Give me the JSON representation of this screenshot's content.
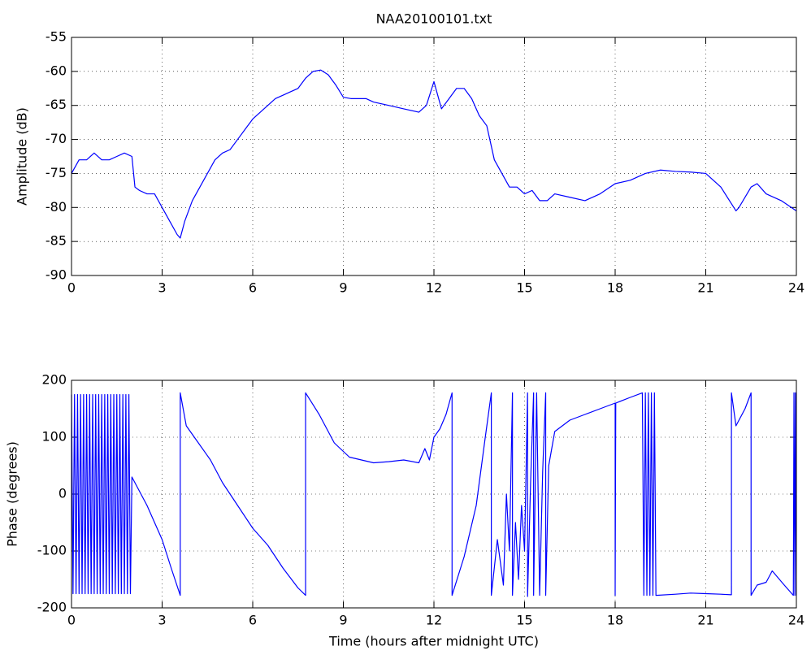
{
  "chart_data": [
    {
      "type": "line",
      "title": "NAA20100101.txt",
      "ylabel": "Amplitude (dB)",
      "xlim": [
        0,
        24
      ],
      "xticks": [
        0,
        3,
        6,
        9,
        12,
        15,
        18,
        21,
        24
      ],
      "ylim": [
        -90,
        -55
      ],
      "yticks": [
        -90,
        -85,
        -80,
        -75,
        -70,
        -65,
        -60,
        -55
      ],
      "grid": true,
      "series": [
        {
          "color": "#0000ff",
          "x": [
            0,
            0.25,
            0.5,
            0.75,
            1,
            1.25,
            1.5,
            1.75,
            2,
            2.1,
            2.25,
            2.5,
            2.75,
            3,
            3.25,
            3.5,
            3.6,
            3.75,
            4,
            4.25,
            4.5,
            4.75,
            5,
            5.25,
            5.5,
            5.75,
            6,
            6.25,
            6.5,
            6.75,
            7,
            7.25,
            7.5,
            7.75,
            8,
            8.25,
            8.5,
            8.75,
            9,
            9.25,
            9.5,
            9.75,
            10,
            10.5,
            11,
            11.5,
            11.75,
            12,
            12.25,
            12.5,
            12.75,
            13,
            13.25,
            13.5,
            13.75,
            14,
            14.25,
            14.5,
            14.75,
            15,
            15.25,
            15.5,
            15.75,
            16,
            16.5,
            17,
            17.5,
            18,
            18.5,
            19,
            19.5,
            20,
            20.5,
            21,
            21.5,
            22,
            22.1,
            22.5,
            22.7,
            23,
            23.5,
            24
          ],
          "values": [
            -75,
            -73,
            -73,
            -72,
            -73,
            -73,
            -72.5,
            -72,
            -72.5,
            -77,
            -77.5,
            -78,
            -78,
            -80,
            -82,
            -84,
            -84.5,
            -82,
            -79,
            -77,
            -75,
            -73,
            -72,
            -71.5,
            -70,
            -68.5,
            -67,
            -66,
            -65,
            -64,
            -63.5,
            -63,
            -62.5,
            -61,
            -60,
            -59.8,
            -60.5,
            -62,
            -63.8,
            -64,
            -64,
            -64,
            -64.5,
            -65,
            -65.5,
            -66,
            -65,
            -61.5,
            -65.5,
            -64,
            -62.5,
            -62.5,
            -64,
            -66.5,
            -68,
            -73,
            -75,
            -77,
            -77,
            -78,
            -77.5,
            -79,
            -79,
            -78,
            -78.5,
            -79,
            -78,
            -76.5,
            -76,
            -75,
            -74.5,
            -74.7,
            -74.8,
            -75,
            -77,
            -80.5,
            -80,
            -77,
            -76.5,
            -78,
            -79,
            -80.5
          ]
        }
      ]
    },
    {
      "type": "line",
      "xlabel": "Time (hours after midnight UTC)",
      "ylabel": "Phase (degrees)",
      "xlim": [
        0,
        24
      ],
      "xticks": [
        0,
        3,
        6,
        9,
        12,
        15,
        18,
        21,
        24
      ],
      "ylim": [
        -200,
        200
      ],
      "yticks": [
        -200,
        -100,
        0,
        100,
        200
      ],
      "grid": true,
      "series": [
        {
          "color": "#0000ff",
          "x": [
            0,
            0.05,
            0.1,
            0.15,
            0.2,
            0.25,
            0.3,
            0.35,
            0.4,
            0.45,
            0.5,
            0.55,
            0.6,
            0.65,
            0.7,
            0.75,
            0.8,
            0.85,
            0.9,
            0.95,
            1,
            1.05,
            1.1,
            1.15,
            1.2,
            1.25,
            1.3,
            1.35,
            1.4,
            1.45,
            1.5,
            1.55,
            1.6,
            1.65,
            1.7,
            1.75,
            1.8,
            1.85,
            1.9,
            1.95,
            2,
            2.5,
            3,
            3.3,
            3.6,
            3.6,
            3.8,
            4.2,
            4.6,
            5,
            5.5,
            6,
            6.5,
            7,
            7.5,
            7.75,
            7.75,
            8.2,
            8.7,
            9.2,
            9.6,
            10,
            10.5,
            11,
            11.5,
            11.7,
            11.85,
            12,
            12.2,
            12.4,
            12.6,
            12.6,
            13,
            13.4,
            13.7,
            13.9,
            13.9,
            14.1,
            14.3,
            14.4,
            14.5,
            14.6,
            14.6,
            14.7,
            14.8,
            14.9,
            15,
            15.1,
            15.1,
            15.2,
            15.3,
            15.3,
            15.4,
            15.5,
            15.6,
            15.7,
            15.7,
            15.8,
            16,
            16.5,
            17,
            17.5,
            18,
            18,
            18.02,
            18.5,
            18.9,
            18.95,
            19,
            19.05,
            19.1,
            19.15,
            19.2,
            19.25,
            19.3,
            19.35,
            20,
            20.5,
            21,
            21.5,
            21.85,
            21.85,
            22,
            22.3,
            22.5,
            22.5,
            22.7,
            23,
            23.2,
            23.6,
            23.9,
            23.92,
            23.95,
            23.97,
            24
          ],
          "values": [
            175,
            -175,
            175,
            -175,
            175,
            -175,
            175,
            -175,
            175,
            -175,
            175,
            -175,
            175,
            -175,
            175,
            -175,
            175,
            -175,
            175,
            -175,
            175,
            -175,
            175,
            -175,
            175,
            -175,
            175,
            -175,
            175,
            -175,
            175,
            -175,
            175,
            -175,
            175,
            -175,
            175,
            -175,
            175,
            -175,
            30,
            -20,
            -80,
            -130,
            -178,
            178,
            120,
            90,
            60,
            20,
            -20,
            -60,
            -90,
            -130,
            -165,
            -178,
            178,
            140,
            90,
            65,
            60,
            55,
            57,
            60,
            55,
            80,
            60,
            100,
            115,
            140,
            178,
            -178,
            -110,
            -20,
            100,
            178,
            -178,
            -80,
            -160,
            0,
            -100,
            178,
            -178,
            -50,
            -150,
            -20,
            -100,
            178,
            -180,
            20,
            178,
            -178,
            178,
            -178,
            40,
            178,
            -178,
            50,
            110,
            130,
            140,
            150,
            160,
            -178,
            160,
            170,
            178,
            -178,
            178,
            -178,
            178,
            -178,
            178,
            -178,
            178,
            -178,
            -176,
            -174,
            -175,
            -176,
            -177,
            178,
            120,
            150,
            178,
            -178,
            -160,
            -155,
            -135,
            -160,
            -178,
            178,
            -178,
            178,
            -178
          ]
        }
      ]
    }
  ]
}
